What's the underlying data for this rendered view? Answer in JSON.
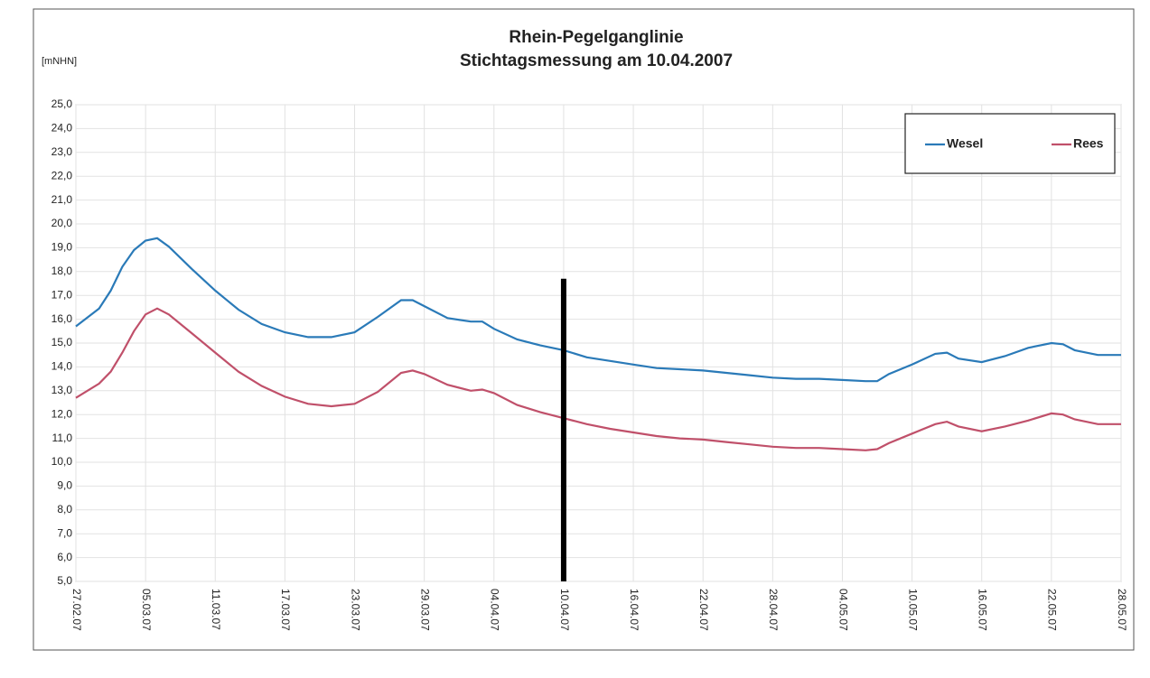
{
  "chart_data": {
    "type": "line",
    "title": [
      "Rhein-Pegelganglinie",
      "Stichtagsmessung am 10.04.2007"
    ],
    "y_label": "[mNHN]",
    "x": [
      "27.02.07",
      "01.03.07",
      "02.03.07",
      "03.03.07",
      "04.03.07",
      "05.03.07",
      "06.03.07",
      "07.03.07",
      "09.03.07",
      "11.03.07",
      "13.03.07",
      "15.03.07",
      "17.03.07",
      "19.03.07",
      "21.03.07",
      "23.03.07",
      "25.03.07",
      "27.03.07",
      "28.03.07",
      "29.03.07",
      "31.03.07",
      "02.04.07",
      "03.04.07",
      "04.04.07",
      "06.04.07",
      "08.04.07",
      "10.04.07",
      "12.04.07",
      "14.04.07",
      "16.04.07",
      "18.04.07",
      "20.04.07",
      "22.04.07",
      "24.04.07",
      "26.04.07",
      "28.04.07",
      "30.04.07",
      "02.05.07",
      "04.05.07",
      "06.05.07",
      "07.05.07",
      "08.05.07",
      "10.05.07",
      "12.05.07",
      "13.05.07",
      "14.05.07",
      "16.05.07",
      "18.05.07",
      "20.05.07",
      "22.05.07",
      "23.05.07",
      "24.05.07",
      "26.05.07",
      "28.05.07"
    ],
    "series": [
      {
        "name": "Wesel",
        "color": "#2a7ab8",
        "values": [
          15.7,
          16.45,
          17.2,
          18.2,
          18.9,
          19.3,
          19.4,
          19.05,
          18.1,
          17.2,
          16.4,
          15.8,
          15.45,
          15.25,
          15.25,
          15.45,
          16.1,
          16.8,
          16.8,
          16.55,
          16.05,
          15.9,
          15.9,
          15.6,
          15.15,
          14.9,
          14.7,
          14.4,
          14.25,
          14.1,
          13.95,
          13.9,
          13.85,
          13.75,
          13.65,
          13.55,
          13.5,
          13.5,
          13.45,
          13.4,
          13.4,
          13.7,
          14.1,
          14.55,
          14.6,
          14.35,
          14.2,
          14.45,
          14.8,
          15.0,
          14.95,
          14.7,
          14.5,
          14.5
        ]
      },
      {
        "name": "Rees",
        "color": "#c0506a",
        "values": [
          12.7,
          13.3,
          13.8,
          14.6,
          15.5,
          16.2,
          16.45,
          16.2,
          15.4,
          14.6,
          13.8,
          13.2,
          12.75,
          12.45,
          12.35,
          12.45,
          12.95,
          13.75,
          13.85,
          13.7,
          13.25,
          13.0,
          13.05,
          12.9,
          12.4,
          12.1,
          11.85,
          11.6,
          11.4,
          11.25,
          11.1,
          11.0,
          10.95,
          10.85,
          10.75,
          10.65,
          10.6,
          10.6,
          10.55,
          10.5,
          10.55,
          10.8,
          11.2,
          11.6,
          11.7,
          11.5,
          11.3,
          11.5,
          11.75,
          12.05,
          12.0,
          11.8,
          11.6,
          11.6
        ]
      }
    ],
    "xlim": [
      "27.02.07",
      "28.05.07"
    ],
    "xticks": [
      "27.02.07",
      "05.03.07",
      "11.03.07",
      "17.03.07",
      "23.03.07",
      "29.03.07",
      "04.04.07",
      "10.04.07",
      "16.04.07",
      "22.04.07",
      "28.04.07",
      "04.05.07",
      "10.05.07",
      "16.05.07",
      "22.05.07",
      "28.05.07"
    ],
    "ylim": [
      5,
      25
    ],
    "yticks": [
      {
        "value": 5,
        "label": "5,0"
      },
      {
        "value": 6,
        "label": "6,0"
      },
      {
        "value": 7,
        "label": "7,0"
      },
      {
        "value": 8,
        "label": "8,0"
      },
      {
        "value": 9,
        "label": "9,0"
      },
      {
        "value": 10,
        "label": "10,0"
      },
      {
        "value": 11,
        "label": "11,0"
      },
      {
        "value": 12,
        "label": "12,0"
      },
      {
        "value": 13,
        "label": "13,0"
      },
      {
        "value": 14,
        "label": "14,0"
      },
      {
        "value": 15,
        "label": "15,0"
      },
      {
        "value": 16,
        "label": "16,0"
      },
      {
        "value": 17,
        "label": "17,0"
      },
      {
        "value": 18,
        "label": "18,0"
      },
      {
        "value": 19,
        "label": "19,0"
      },
      {
        "value": 20,
        "label": "20,0"
      },
      {
        "value": 21,
        "label": "21,0"
      },
      {
        "value": 22,
        "label": "22,0"
      },
      {
        "value": 23,
        "label": "23,0"
      },
      {
        "value": 24,
        "label": "24,0"
      },
      {
        "value": 25,
        "label": "25,0"
      }
    ],
    "vline": {
      "x": "10.04.07",
      "y": [
        5,
        17.7
      ],
      "color": "#000000"
    },
    "grid": true,
    "legend": "top-right"
  }
}
